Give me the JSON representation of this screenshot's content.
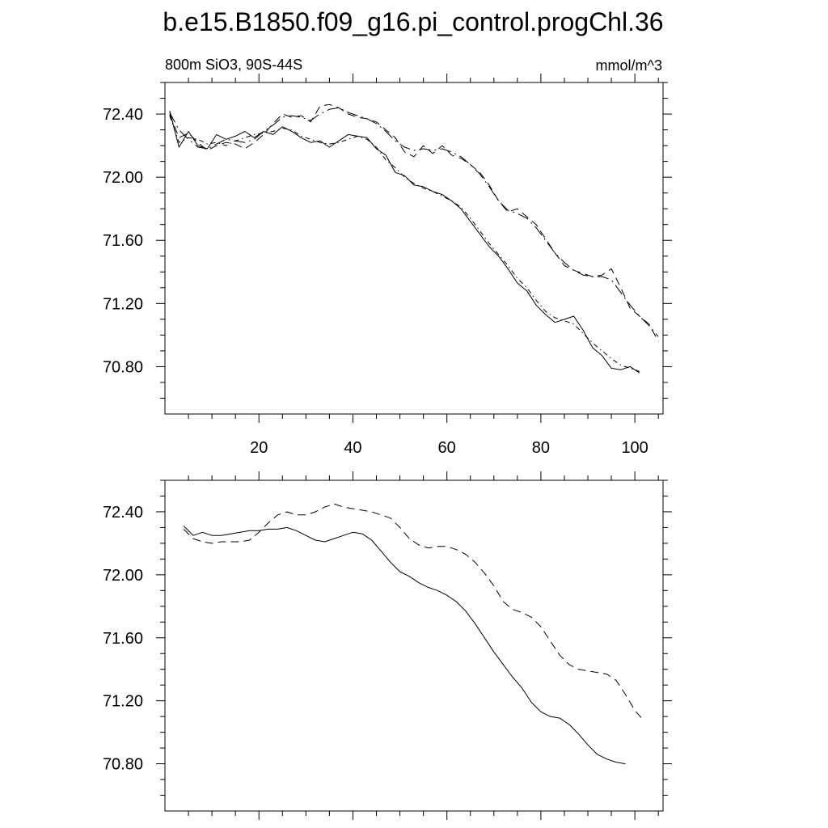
{
  "page": {
    "title": "b.e15.B1850.f09_g16.pi_control.progChl.36",
    "subtitle_left": "800m SiO3, 90S-44S",
    "subtitle_right": "mmol/m^3"
  },
  "colors": {
    "line": "#000000",
    "background": "#ffffff"
  },
  "chart_data": [
    {
      "type": "line",
      "title": "b.e15.B1850.f09_g16.pi_control.progChl.36",
      "subtitle_left": "800m SiO3, 90S-44S",
      "subtitle_right": "mmol/m^3",
      "xlim": [
        0,
        106
      ],
      "ylim": [
        70.5,
        72.6
      ],
      "x_ticks": [
        20,
        40,
        60,
        80,
        100
      ],
      "y_ticks": [
        70.8,
        71.2,
        71.6,
        72.0,
        72.4
      ],
      "y_tick_labels": [
        "70.80",
        "71.20",
        "71.60",
        "72.00",
        "72.40"
      ],
      "x_tick_labels": [
        "20",
        "40",
        "60",
        "80",
        "100"
      ],
      "grid": false,
      "series": [
        {
          "style": "solid",
          "x": [
            1,
            3,
            5,
            7,
            9,
            11,
            13,
            15,
            17,
            19,
            21,
            23,
            25,
            27,
            29,
            31,
            33,
            35,
            37,
            39,
            41,
            43,
            45,
            47,
            49,
            51,
            53,
            55,
            57,
            59,
            61,
            63,
            65,
            67,
            69,
            71,
            73,
            75,
            77,
            79,
            81,
            83,
            85,
            87,
            89,
            91,
            93,
            95,
            97,
            99,
            101
          ],
          "y": [
            72.42,
            72.19,
            72.29,
            72.2,
            72.18,
            72.27,
            72.24,
            72.26,
            72.29,
            72.25,
            72.29,
            72.27,
            72.32,
            72.29,
            72.25,
            72.22,
            72.23,
            72.19,
            72.23,
            72.27,
            72.26,
            72.25,
            72.18,
            72.14,
            72.03,
            72.01,
            71.95,
            71.94,
            71.91,
            71.89,
            71.85,
            71.8,
            71.72,
            71.64,
            71.56,
            71.5,
            71.42,
            71.33,
            71.28,
            71.19,
            71.13,
            71.08,
            71.1,
            71.12,
            71.03,
            70.92,
            70.87,
            70.79,
            70.78,
            70.8,
            70.76
          ]
        },
        {
          "style": "dash-dot",
          "x": [
            1,
            3,
            5,
            7,
            9,
            11,
            13,
            15,
            17,
            19,
            21,
            23,
            25,
            27,
            29,
            31,
            33,
            35,
            37,
            39,
            41,
            43,
            45,
            47,
            49,
            51,
            53,
            55,
            57,
            59,
            61,
            63,
            65,
            67,
            69,
            71,
            73,
            75,
            77,
            79,
            81,
            83,
            85,
            87,
            89,
            91,
            93,
            95,
            97,
            99,
            101
          ],
          "y": [
            72.39,
            72.22,
            72.25,
            72.24,
            72.21,
            72.22,
            72.2,
            72.23,
            72.25,
            72.27,
            72.28,
            72.29,
            72.31,
            72.3,
            72.26,
            72.24,
            72.22,
            72.21,
            72.22,
            72.24,
            72.26,
            72.24,
            72.19,
            72.11,
            72.06,
            72.0,
            71.96,
            71.93,
            71.91,
            71.88,
            71.85,
            71.81,
            71.74,
            71.66,
            71.58,
            71.51,
            71.44,
            71.36,
            71.3,
            71.22,
            71.15,
            71.11,
            71.09,
            71.07,
            71.01,
            70.95,
            70.9,
            70.85,
            70.81,
            70.79,
            70.77
          ]
        },
        {
          "style": "dash",
          "x": [
            1,
            3,
            5,
            7,
            9,
            11,
            13,
            15,
            17,
            19,
            21,
            23,
            25,
            27,
            29,
            31,
            33,
            35,
            37,
            39,
            41,
            43,
            45,
            47,
            49,
            51,
            53,
            55,
            57,
            59,
            61,
            63,
            65,
            67,
            69,
            71,
            73,
            75,
            77,
            79,
            81,
            83,
            85,
            87,
            89,
            91,
            93,
            95,
            97,
            99,
            101,
            103,
            105
          ],
          "y": [
            72.4,
            72.25,
            72.28,
            72.22,
            72.17,
            72.2,
            72.22,
            72.21,
            72.18,
            72.22,
            72.27,
            72.34,
            72.4,
            72.38,
            72.39,
            72.35,
            72.45,
            72.46,
            72.44,
            72.4,
            72.38,
            72.37,
            72.35,
            72.3,
            72.25,
            72.16,
            72.13,
            72.2,
            72.15,
            72.2,
            72.14,
            72.12,
            72.08,
            72.03,
            71.95,
            71.85,
            71.78,
            71.8,
            71.75,
            71.7,
            71.61,
            71.52,
            71.44,
            71.41,
            71.39,
            71.37,
            71.38,
            71.42,
            71.3,
            71.17,
            71.12,
            71.07,
            70.96
          ]
        },
        {
          "style": "long-dash-dot",
          "x": [
            1,
            3,
            5,
            7,
            9,
            11,
            13,
            15,
            17,
            19,
            21,
            23,
            25,
            27,
            29,
            31,
            33,
            35,
            37,
            39,
            41,
            43,
            45,
            47,
            49,
            51,
            53,
            55,
            57,
            59,
            61,
            63,
            65,
            67,
            69,
            71,
            73,
            75,
            77,
            79,
            81,
            83,
            85,
            87,
            89,
            91,
            93,
            95,
            97,
            99,
            101,
            103,
            105
          ],
          "y": [
            72.41,
            72.3,
            72.24,
            72.19,
            72.18,
            72.21,
            72.24,
            72.23,
            72.22,
            72.24,
            72.29,
            72.33,
            72.38,
            72.39,
            72.38,
            72.36,
            72.4,
            72.43,
            72.44,
            72.41,
            72.39,
            72.37,
            72.34,
            72.29,
            72.23,
            72.19,
            72.17,
            72.18,
            72.17,
            72.18,
            72.16,
            72.13,
            72.08,
            72.02,
            71.94,
            71.85,
            71.79,
            71.77,
            71.74,
            71.68,
            71.6,
            71.52,
            71.46,
            71.41,
            71.38,
            71.37,
            71.37,
            71.35,
            71.27,
            71.19,
            71.12,
            71.06,
            70.99
          ]
        }
      ]
    },
    {
      "type": "line",
      "xlim": [
        0,
        106
      ],
      "ylim": [
        70.5,
        72.6
      ],
      "x_ticks": [
        20,
        40,
        60,
        80,
        100
      ],
      "y_ticks": [
        70.8,
        71.2,
        71.6,
        72.0,
        72.4
      ],
      "y_tick_labels": [
        "70.80",
        "71.20",
        "71.60",
        "72.00",
        "72.40"
      ],
      "grid": false,
      "series": [
        {
          "style": "solid",
          "x": [
            4,
            6,
            8,
            10,
            12,
            14,
            16,
            18,
            20,
            22,
            24,
            26,
            28,
            30,
            32,
            34,
            36,
            38,
            40,
            42,
            44,
            46,
            48,
            50,
            52,
            54,
            56,
            58,
            60,
            62,
            64,
            66,
            68,
            70,
            72,
            74,
            76,
            78,
            80,
            82,
            84,
            86,
            88,
            90,
            92,
            94,
            96,
            98
          ],
          "y": [
            72.31,
            72.25,
            72.27,
            72.25,
            72.25,
            72.26,
            72.27,
            72.28,
            72.28,
            72.29,
            72.29,
            72.3,
            72.28,
            72.25,
            72.22,
            72.21,
            72.23,
            72.25,
            72.27,
            72.26,
            72.22,
            72.15,
            72.08,
            72.02,
            71.99,
            71.95,
            71.92,
            71.9,
            71.87,
            71.83,
            71.77,
            71.69,
            71.6,
            71.51,
            71.43,
            71.35,
            71.28,
            71.19,
            71.13,
            71.1,
            71.09,
            71.05,
            70.99,
            70.92,
            70.86,
            70.83,
            70.81,
            70.8
          ]
        },
        {
          "style": "dash",
          "x": [
            4,
            6,
            8,
            10,
            12,
            14,
            16,
            18,
            20,
            22,
            24,
            26,
            28,
            30,
            32,
            34,
            36,
            38,
            40,
            42,
            44,
            46,
            48,
            50,
            52,
            54,
            56,
            58,
            60,
            62,
            64,
            66,
            68,
            70,
            72,
            74,
            76,
            78,
            80,
            82,
            84,
            86,
            88,
            90,
            92,
            94,
            96,
            98,
            100,
            102
          ],
          "y": [
            72.29,
            72.23,
            72.21,
            72.2,
            72.21,
            72.21,
            72.21,
            72.22,
            72.27,
            72.33,
            72.38,
            72.4,
            72.38,
            72.38,
            72.4,
            72.43,
            72.45,
            72.43,
            72.42,
            72.41,
            72.4,
            72.38,
            72.36,
            72.3,
            72.23,
            72.19,
            72.17,
            72.18,
            72.18,
            72.16,
            72.13,
            72.08,
            72.01,
            71.93,
            71.83,
            71.78,
            71.76,
            71.73,
            71.67,
            71.58,
            71.49,
            71.43,
            71.4,
            71.39,
            71.38,
            71.37,
            71.33,
            71.24,
            71.14,
            71.07
          ]
        }
      ]
    }
  ]
}
